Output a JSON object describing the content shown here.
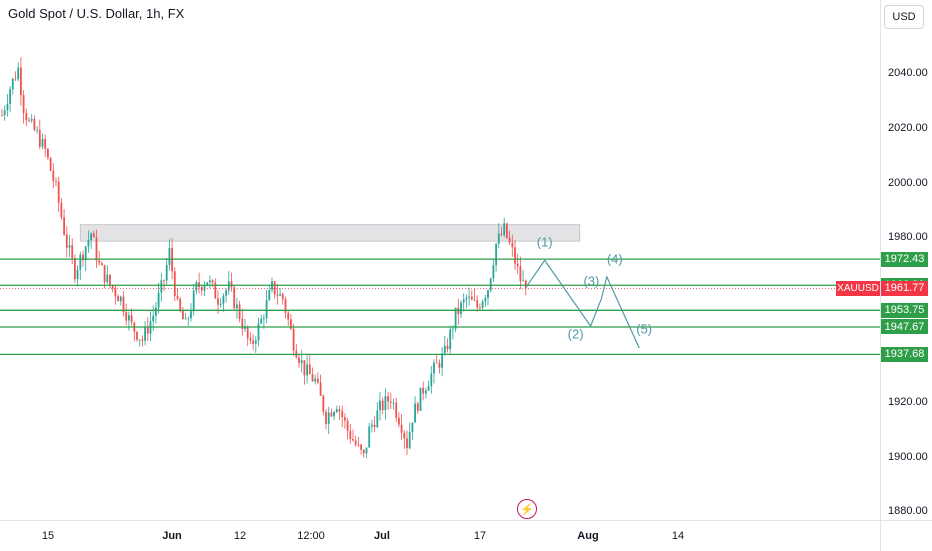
{
  "header": {
    "title": "Gold Spot / U.S. Dollar, 1h, FX",
    "currency": "USD"
  },
  "price_axis": {
    "ticks": [
      "2040.00",
      "2020.00",
      "2000.00",
      "1980.00",
      "1920.00",
      "1900.00",
      "1880.00"
    ]
  },
  "time_axis": {
    "ticks": [
      {
        "label": "15",
        "bold": false
      },
      {
        "label": "Jun",
        "bold": true
      },
      {
        "label": "12",
        "bold": false
      },
      {
        "label": "12:00",
        "bold": false
      },
      {
        "label": "Jul",
        "bold": true
      },
      {
        "label": "17",
        "bold": false
      },
      {
        "label": "Aug",
        "bold": true
      },
      {
        "label": "14",
        "bold": false
      }
    ]
  },
  "levels": [
    "1972.43",
    "1962.89",
    "1953.75",
    "1947.67",
    "1937.68"
  ],
  "current": {
    "symbol": "XAUUSD",
    "price": "1961.77"
  },
  "wave_labels": [
    "(1)",
    "(2)",
    "(3)",
    "(4)",
    "(5)"
  ],
  "colors": {
    "up": "#26a69a",
    "down": "#ef5350",
    "level": "#2e9e48",
    "wave": "#4d9aa6",
    "zone": "#e3e3e6",
    "current": "#f23645"
  },
  "icons": {
    "replay": "lightning-icon"
  },
  "chart_data": {
    "type": "candlestick",
    "symbol": "XAUUSD",
    "timeframe": "1h",
    "x": [
      "15",
      "Jun",
      "12",
      "12:00",
      "Jul",
      "17",
      "Aug",
      "14"
    ],
    "ylim": [
      1877,
      2058
    ],
    "close_path": [
      [
        0,
        2025
      ],
      [
        3,
        2035
      ],
      [
        6,
        2042
      ],
      [
        8,
        2028
      ],
      [
        10,
        2022
      ],
      [
        13,
        2018
      ],
      [
        16,
        2012
      ],
      [
        18,
        2005
      ],
      [
        20,
        1998
      ],
      [
        22,
        1988
      ],
      [
        24,
        1978
      ],
      [
        27,
        1968
      ],
      [
        30,
        1975
      ],
      [
        33,
        1982
      ],
      [
        36,
        1970
      ],
      [
        40,
        1963
      ],
      [
        44,
        1958
      ],
      [
        48,
        1948
      ],
      [
        52,
        1943
      ],
      [
        56,
        1952
      ],
      [
        60,
        1965
      ],
      [
        62,
        1975
      ],
      [
        65,
        1955
      ],
      [
        68,
        1948
      ],
      [
        72,
        1962
      ],
      [
        76,
        1965
      ],
      [
        80,
        1958
      ],
      [
        84,
        1962
      ],
      [
        88,
        1952
      ],
      [
        92,
        1940
      ],
      [
        96,
        1950
      ],
      [
        100,
        1962
      ],
      [
        104,
        1958
      ],
      [
        108,
        1942
      ],
      [
        112,
        1932
      ],
      [
        116,
        1928
      ],
      [
        120,
        1915
      ],
      [
        124,
        1920
      ],
      [
        128,
        1910
      ],
      [
        132,
        1903
      ],
      [
        134,
        1900
      ],
      [
        136,
        1910
      ],
      [
        140,
        1918
      ],
      [
        144,
        1922
      ],
      [
        148,
        1912
      ],
      [
        150,
        1905
      ],
      [
        152,
        1915
      ],
      [
        156,
        1925
      ],
      [
        160,
        1932
      ],
      [
        164,
        1938
      ],
      [
        168,
        1952
      ],
      [
        172,
        1958
      ],
      [
        176,
        1955
      ],
      [
        180,
        1962
      ],
      [
        183,
        1978
      ],
      [
        186,
        1983
      ],
      [
        189,
        1975
      ],
      [
        192,
        1965
      ],
      [
        194,
        1961.77
      ]
    ],
    "zone": {
      "x": [
        29,
        214
      ],
      "y": [
        1979,
        1985
      ]
    },
    "levels": [
      1972.43,
      1962.89,
      1953.75,
      1947.67,
      1937.68
    ],
    "last_price": 1961.77,
    "wave_projection": [
      [
        194,
        1962
      ],
      [
        201,
        1972
      ],
      [
        218,
        1948
      ],
      [
        222,
        1958
      ],
      [
        224,
        1966
      ],
      [
        236,
        1940
      ]
    ]
  }
}
